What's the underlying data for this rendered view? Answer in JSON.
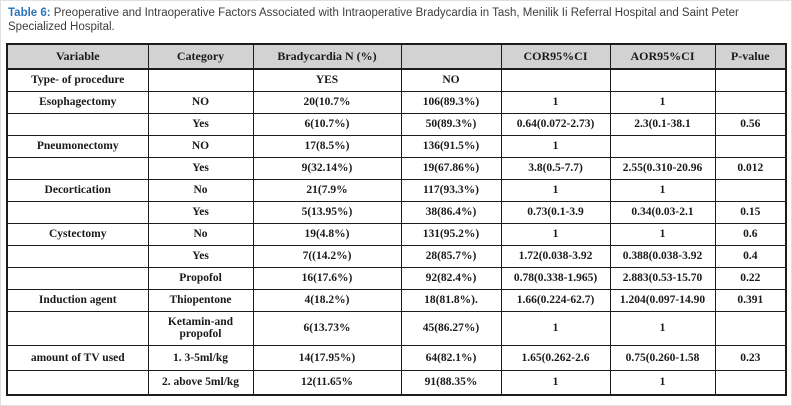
{
  "title": {
    "label": "Table 6:",
    "text": " Preoperative and Intraoperative Factors Associated with Intraoperative Bradycardia in Tash, Menilik Ii Referral Hospital and Saint Peter Specialized Hospital.",
    "label_color": "#2e73b5"
  },
  "style": {
    "header_bg": "#d2d2d2",
    "border_color": "#1c1c1c",
    "text_color": "#1a1a1a"
  },
  "table": {
    "header": [
      "Variable",
      "Category",
      "Bradycardia N (%)",
      "",
      "COR95%CI",
      "AOR95%CI",
      "P-value"
    ],
    "rows": [
      [
        "Type- of procedure",
        "",
        "YES",
        "NO",
        "",
        "",
        ""
      ],
      [
        "Esophagectomy",
        "NO",
        "20(10.7%",
        "106(89.3%)",
        "1",
        "1",
        ""
      ],
      [
        "",
        "Yes",
        "6(10.7%)",
        "50(89.3%)",
        "0.64(0.072-2.73)",
        "2.3(0.1-38.1",
        "0.56"
      ],
      [
        "Pneumonectomy",
        "NO",
        "17(8.5%)",
        "136(91.5%)",
        "1",
        "",
        ""
      ],
      [
        "",
        "Yes",
        "9(32.14%)",
        "19(67.86%)",
        "3.8(0.5-7.7)",
        "2.55(0.310-20.96",
        "0.012"
      ],
      [
        "Decortication",
        "No",
        "21(7.9%",
        "117(93.3%)",
        "1",
        "1",
        ""
      ],
      [
        "",
        "Yes",
        "5(13.95%)",
        "38(86.4%)",
        "0.73(0.1-3.9",
        "0.34(0.03-2.1",
        "0.15"
      ],
      [
        "Cystectomy",
        "No",
        "19(4.8%)",
        "131(95.2%)",
        "1",
        "1",
        "0.6"
      ],
      [
        "",
        "Yes",
        "7((14.2%)",
        "28(85.7%)",
        "1.72(0.038-3.92",
        "0.388(0.038-3.92",
        "0.4"
      ],
      [
        "",
        "Propofol",
        "16(17.6%)",
        "92(82.4%)",
        "0.78(0.338-1.965)",
        "2.883(0.53-15.70",
        "0.22"
      ],
      [
        "Induction agent",
        "Thiopentone",
        "4(18.2%)",
        "18(81.8%).",
        "1.66(0.224-62.7)",
        "1.204(0.097-14.90",
        "0.391"
      ],
      [
        "",
        "Ketamin-and propofol",
        "6(13.73%",
        "45(86.27%)",
        "1",
        "1",
        ""
      ],
      [
        "amount of TV used",
        "1. 3-5ml/kg",
        "14(17.95%)",
        "64(82.1%)",
        "1.65(0.262-2.6",
        "0.75(0.260-1.58",
        "0.23"
      ],
      [
        "",
        "2. above 5ml/kg",
        "12(11.65%",
        "91(88.35%",
        "1",
        "1",
        ""
      ]
    ]
  }
}
